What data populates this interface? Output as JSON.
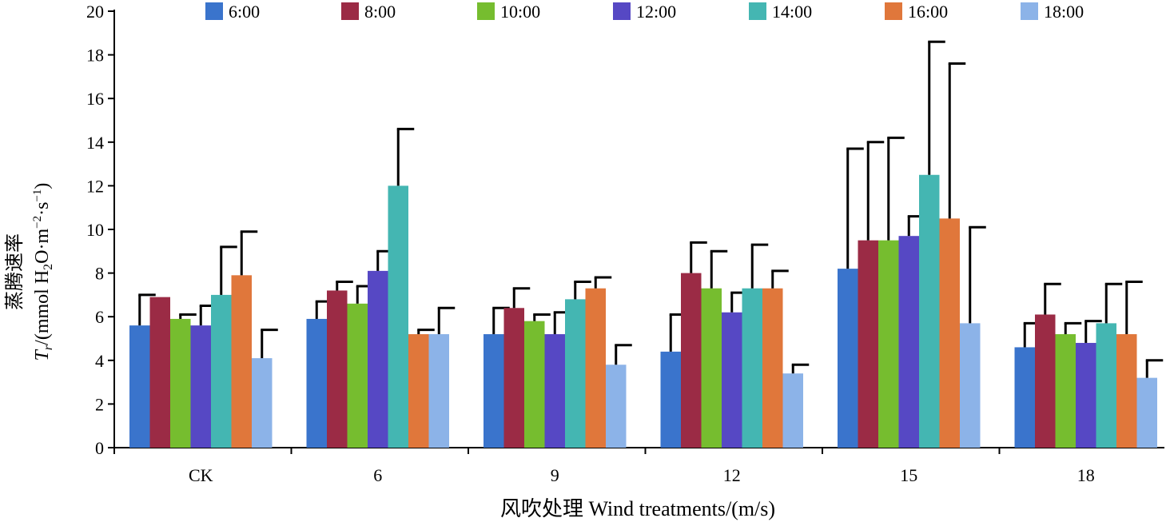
{
  "chart_data": {
    "type": "bar",
    "categories": [
      "CK",
      "6",
      "9",
      "12",
      "15",
      "18"
    ],
    "series": [
      {
        "name": "6:00",
        "color": "#3a74cc",
        "values": [
          5.6,
          5.9,
          5.2,
          4.4,
          8.2,
          4.6
        ],
        "errors": [
          1.4,
          0.8,
          1.2,
          1.7,
          5.5,
          1.1
        ]
      },
      {
        "name": "8:00",
        "color": "#9b2b45",
        "values": [
          6.9,
          7.2,
          6.4,
          8.0,
          9.5,
          6.1
        ],
        "errors": [
          0.0,
          0.4,
          0.9,
          1.4,
          4.5,
          1.4
        ]
      },
      {
        "name": "10:00",
        "color": "#76bd2f",
        "values": [
          5.9,
          6.6,
          5.8,
          7.3,
          9.5,
          5.2
        ],
        "errors": [
          0.2,
          0.8,
          0.3,
          1.7,
          4.7,
          0.5
        ]
      },
      {
        "name": "12:00",
        "color": "#5648c4",
        "values": [
          5.6,
          8.1,
          5.2,
          6.2,
          9.7,
          4.8
        ],
        "errors": [
          0.9,
          0.9,
          1.0,
          0.9,
          0.9,
          1.0
        ]
      },
      {
        "name": "14:00",
        "color": "#44b6b2",
        "values": [
          7.0,
          12.0,
          6.8,
          7.3,
          12.5,
          5.7
        ],
        "errors": [
          2.2,
          2.6,
          0.8,
          2.0,
          6.1,
          1.8
        ]
      },
      {
        "name": "16:00",
        "color": "#e0773b",
        "values": [
          7.9,
          5.2,
          7.3,
          7.3,
          10.5,
          5.2
        ],
        "errors": [
          2.0,
          0.2,
          0.5,
          0.8,
          7.1,
          2.4
        ]
      },
      {
        "name": "18:00",
        "color": "#8cb3e8",
        "values": [
          4.1,
          5.2,
          3.8,
          3.4,
          5.7,
          3.2
        ],
        "errors": [
          1.3,
          1.2,
          0.9,
          0.4,
          4.4,
          0.8
        ]
      }
    ],
    "xlabel": "风吹处理 Wind treatments/(m/s)",
    "ylabel": {
      "line1": "蒸腾速率",
      "symbol": "T",
      "subscript": "r",
      "unit_start": "/(mmol H",
      "unit_sub2": "2",
      "unit_mid": "O·m",
      "unit_sup1": "−2",
      "unit_mid2": "·s",
      "unit_sup2": "−1",
      "unit_end": ")"
    },
    "ylim": [
      0,
      20
    ],
    "yticks": [
      0,
      2,
      4,
      6,
      8,
      10,
      12,
      14,
      16,
      18,
      20
    ],
    "legend_position": "top",
    "grid": false
  }
}
